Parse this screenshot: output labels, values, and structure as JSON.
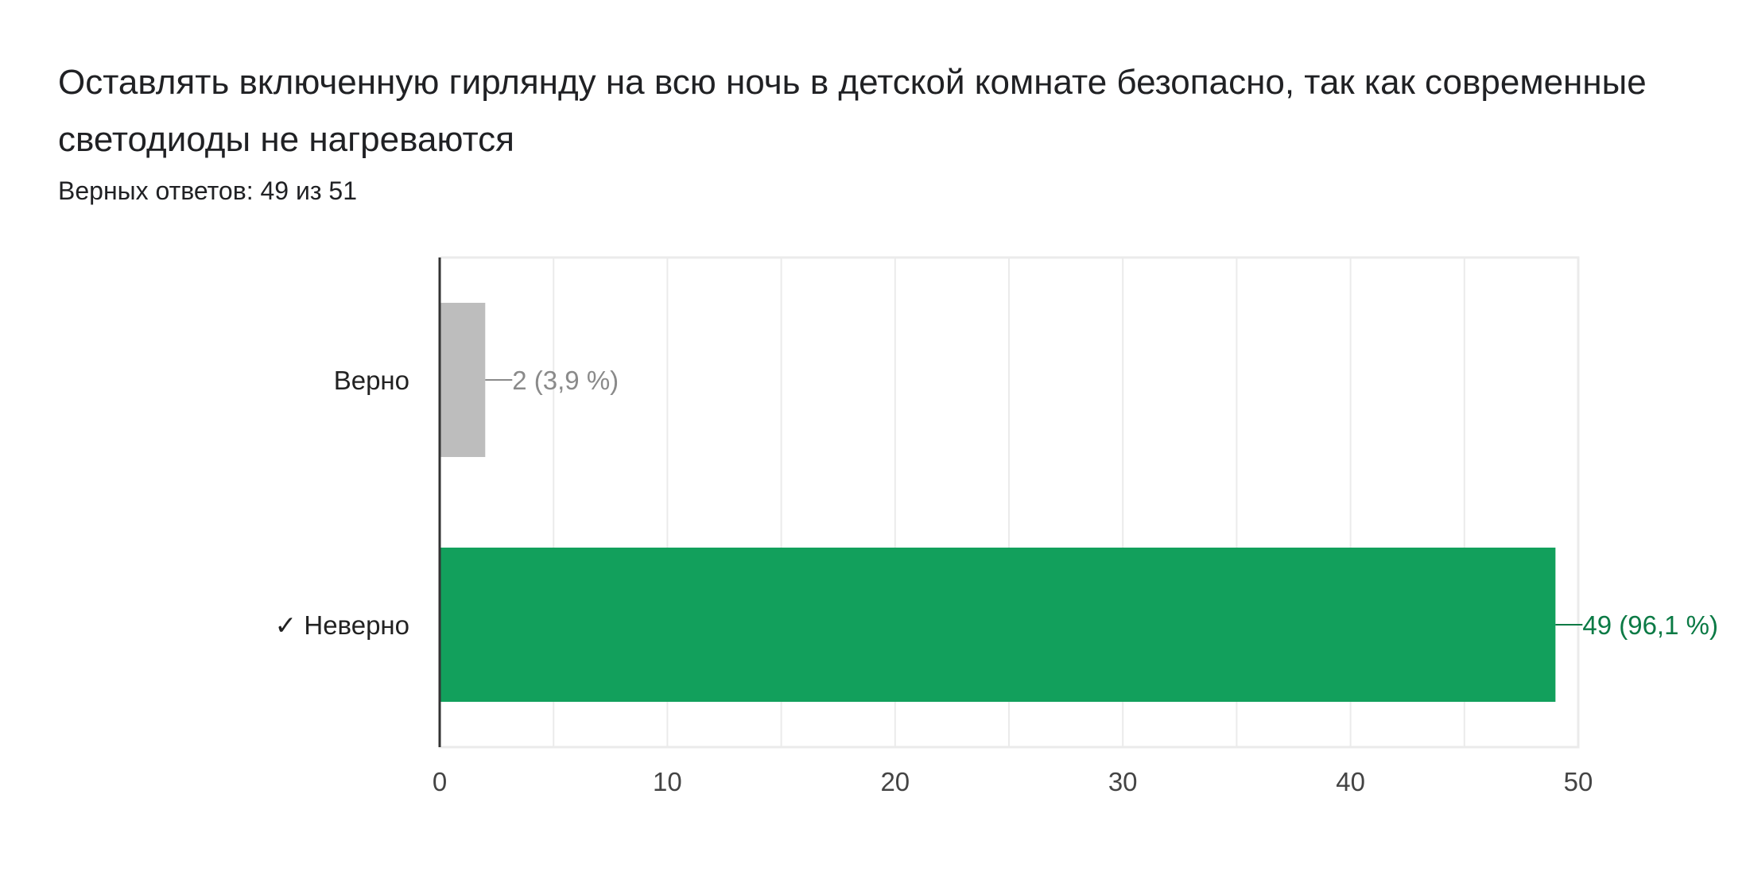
{
  "question": {
    "title": "Оставлять включенную гирлянду на всю ночь в детской комнате безопасно, так как современные светодиоды не нагреваются",
    "summary": "Верных ответов: 49 из 51"
  },
  "chart_data": {
    "type": "bar",
    "orientation": "horizontal",
    "categories": [
      "Верно",
      "✓ Неверно"
    ],
    "values": [
      2,
      49
    ],
    "value_labels": [
      "2 (3,9 %)",
      "49 (96,1 %)"
    ],
    "correct": [
      false,
      true
    ],
    "xlim": [
      0,
      50
    ],
    "xticks": [
      0,
      10,
      20,
      30,
      40,
      50
    ],
    "grid": true,
    "title": "",
    "xlabel": "",
    "ylabel": "",
    "colors": {
      "incorrect_bar": "#bdbdbd",
      "correct_bar": "#12a05c",
      "incorrect_label": "#8a8a8a",
      "correct_label": "#0b7a45",
      "gridline": "#ebebeb",
      "axis": "#333333",
      "tick_label": "#444444",
      "category_label": "#222222"
    }
  }
}
